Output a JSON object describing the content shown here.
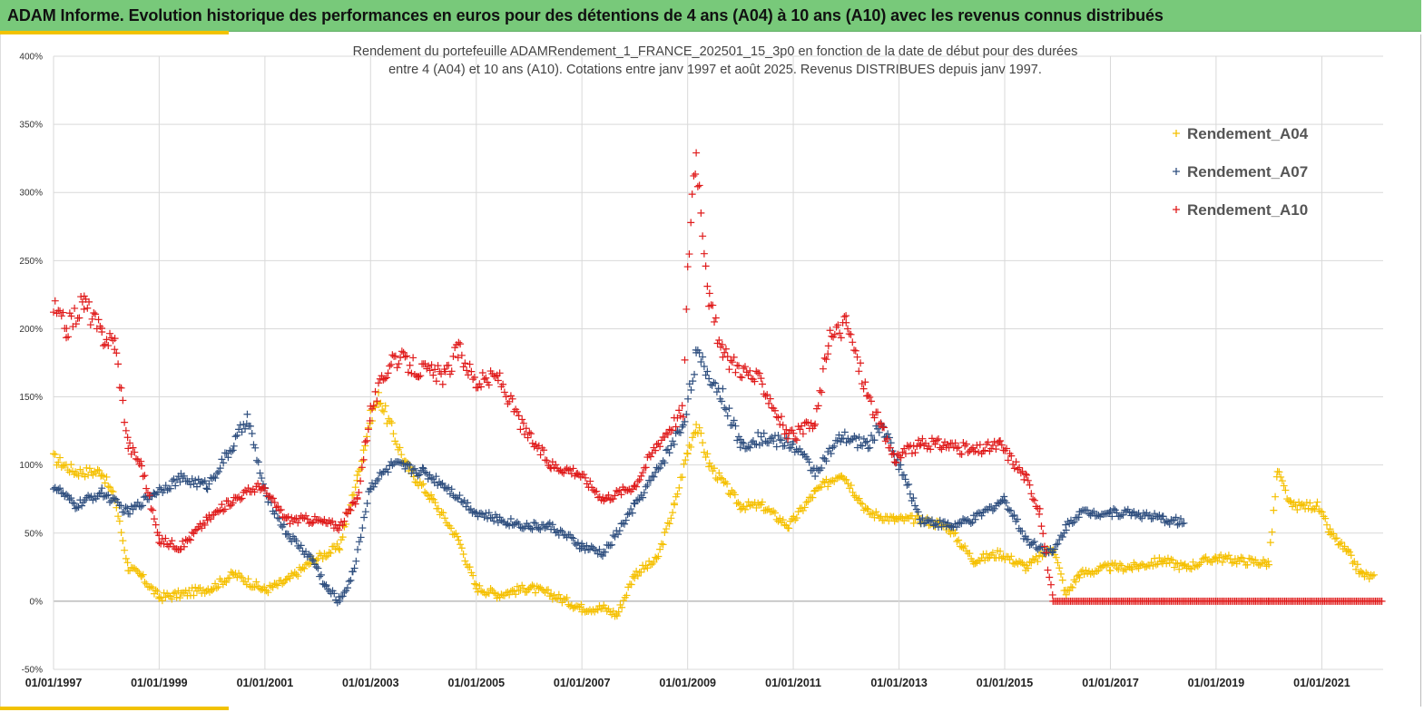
{
  "banner": {
    "title": "ADAM Informe. Evolution historique des performances en euros pour des détentions de 4 ans (A04) à 10 ans (A10) avec les revenus connus distribués"
  },
  "colors": {
    "banner": "#78c97a",
    "accent": "#f2c200",
    "A04": "#f5c000",
    "A07": "#2f4f7f",
    "A10": "#e01b1b"
  },
  "chart_data": {
    "type": "scatter",
    "title_lines": [
      "Rendement du portefeuille ADAMRendement_1_FRANCE_202501_15_3p0  en fonction de la date de début pour des durées",
      "entre 4 (A04) et 10 ans (A10). Cotations  entre janv 1997 et août 2025. Revenus DISTRIBUES depuis janv 1997."
    ],
    "xlabel": "",
    "ylabel": "",
    "ylim": [
      -50,
      400
    ],
    "xlim": [
      "1997-01-01",
      "2022-03-01"
    ],
    "y_ticks": [
      "-50%",
      "0%",
      "50%",
      "100%",
      "150%",
      "200%",
      "250%",
      "300%",
      "350%",
      "400%"
    ],
    "x_ticks": [
      "01/01/1997",
      "01/01/1999",
      "01/01/2001",
      "01/01/2003",
      "01/01/2005",
      "01/01/2007",
      "01/01/2009",
      "01/01/2011",
      "01/01/2013",
      "01/01/2015",
      "01/01/2017",
      "01/01/2019",
      "01/01/2021"
    ],
    "grid": true,
    "legend_position": "top-right",
    "marker": "+",
    "series": [
      {
        "name": "Rendement_A04",
        "color": "#f5c000",
        "points": [
          [
            "1997-01-01",
            105
          ],
          [
            "1997-06-01",
            95
          ],
          [
            "1997-12-01",
            95
          ],
          [
            "1998-03-01",
            75
          ],
          [
            "1998-06-01",
            25
          ],
          [
            "1998-09-01",
            18
          ],
          [
            "1999-01-01",
            3
          ],
          [
            "1999-06-01",
            5
          ],
          [
            "2000-01-01",
            10
          ],
          [
            "2000-06-01",
            20
          ],
          [
            "2001-01-01",
            8
          ],
          [
            "2001-06-01",
            15
          ],
          [
            "2001-12-01",
            30
          ],
          [
            "2002-06-01",
            40
          ],
          [
            "2002-10-01",
            90
          ],
          [
            "2003-01-01",
            135
          ],
          [
            "2003-03-01",
            150
          ],
          [
            "2003-09-01",
            100
          ],
          [
            "2004-03-01",
            75
          ],
          [
            "2004-09-01",
            45
          ],
          [
            "2005-01-01",
            10
          ],
          [
            "2005-06-01",
            5
          ],
          [
            "2006-01-01",
            10
          ],
          [
            "2006-06-01",
            5
          ],
          [
            "2007-01-01",
            -5
          ],
          [
            "2007-06-01",
            -5
          ],
          [
            "2007-09-01",
            -10
          ],
          [
            "2008-01-01",
            20
          ],
          [
            "2008-06-01",
            30
          ],
          [
            "2008-10-01",
            70
          ],
          [
            "2009-01-01",
            110
          ],
          [
            "2009-03-01",
            130
          ],
          [
            "2009-06-01",
            100
          ],
          [
            "2010-01-01",
            70
          ],
          [
            "2010-06-01",
            70
          ],
          [
            "2010-12-01",
            55
          ],
          [
            "2011-06-01",
            80
          ],
          [
            "2011-12-01",
            95
          ],
          [
            "2012-06-01",
            65
          ],
          [
            "2012-12-01",
            60
          ],
          [
            "2013-06-01",
            60
          ],
          [
            "2013-12-01",
            55
          ],
          [
            "2014-06-01",
            30
          ],
          [
            "2014-12-01",
            35
          ],
          [
            "2015-06-01",
            25
          ],
          [
            "2015-12-01",
            40
          ],
          [
            "2016-03-01",
            5
          ],
          [
            "2016-06-01",
            20
          ],
          [
            "2017-01-01",
            25
          ],
          [
            "2017-06-01",
            25
          ],
          [
            "2018-01-01",
            30
          ],
          [
            "2018-06-01",
            25
          ],
          [
            "2019-01-01",
            32
          ],
          [
            "2019-06-01",
            30
          ],
          [
            "2020-01-01",
            28
          ],
          [
            "2020-03-01",
            95
          ],
          [
            "2020-06-01",
            70
          ],
          [
            "2020-12-01",
            70
          ],
          [
            "2021-03-01",
            50
          ],
          [
            "2021-07-01",
            35
          ],
          [
            "2021-10-01",
            20
          ],
          [
            "2022-01-01",
            17
          ]
        ]
      },
      {
        "name": "Rendement_A07",
        "color": "#2f4f7f",
        "points": [
          [
            "1997-01-01",
            85
          ],
          [
            "1997-06-01",
            70
          ],
          [
            "1997-12-01",
            80
          ],
          [
            "1998-06-01",
            65
          ],
          [
            "1998-12-01",
            80
          ],
          [
            "1999-06-01",
            90
          ],
          [
            "1999-12-01",
            85
          ],
          [
            "2000-06-01",
            115
          ],
          [
            "2000-09-01",
            135
          ],
          [
            "2001-01-01",
            80
          ],
          [
            "2001-06-01",
            50
          ],
          [
            "2001-12-01",
            30
          ],
          [
            "2002-03-01",
            10
          ],
          [
            "2002-06-01",
            0
          ],
          [
            "2002-09-01",
            20
          ],
          [
            "2003-01-01",
            85
          ],
          [
            "2003-06-01",
            100
          ],
          [
            "2004-01-01",
            95
          ],
          [
            "2004-06-01",
            85
          ],
          [
            "2005-01-01",
            65
          ],
          [
            "2005-06-01",
            60
          ],
          [
            "2006-01-01",
            55
          ],
          [
            "2006-06-01",
            55
          ],
          [
            "2007-01-01",
            40
          ],
          [
            "2007-06-01",
            35
          ],
          [
            "2008-01-01",
            70
          ],
          [
            "2008-06-01",
            95
          ],
          [
            "2008-12-01",
            130
          ],
          [
            "2009-03-01",
            180
          ],
          [
            "2009-09-01",
            150
          ],
          [
            "2010-01-01",
            115
          ],
          [
            "2010-06-01",
            120
          ],
          [
            "2011-01-01",
            115
          ],
          [
            "2011-06-01",
            95
          ],
          [
            "2011-12-01",
            120
          ],
          [
            "2012-06-01",
            115
          ],
          [
            "2012-09-01",
            130
          ],
          [
            "2013-01-01",
            100
          ],
          [
            "2013-06-01",
            60
          ],
          [
            "2014-01-01",
            55
          ],
          [
            "2014-06-01",
            60
          ],
          [
            "2015-01-01",
            75
          ],
          [
            "2015-06-01",
            45
          ],
          [
            "2015-12-01",
            35
          ],
          [
            "2016-03-01",
            55
          ],
          [
            "2016-06-01",
            65
          ],
          [
            "2017-01-01",
            65
          ],
          [
            "2017-06-01",
            65
          ],
          [
            "2018-01-01",
            60
          ],
          [
            "2018-06-01",
            58
          ]
        ]
      },
      {
        "name": "Rendement_A10",
        "color": "#e01b1b",
        "points": [
          [
            "1997-01-01",
            215
          ],
          [
            "1997-04-01",
            200
          ],
          [
            "1997-08-01",
            220
          ],
          [
            "1997-12-01",
            195
          ],
          [
            "1998-03-01",
            190
          ],
          [
            "1998-06-01",
            115
          ],
          [
            "1998-09-01",
            100
          ],
          [
            "1999-01-01",
            45
          ],
          [
            "1999-06-01",
            40
          ],
          [
            "1999-12-01",
            60
          ],
          [
            "2000-06-01",
            75
          ],
          [
            "2000-12-01",
            85
          ],
          [
            "2001-06-01",
            60
          ],
          [
            "2001-12-01",
            60
          ],
          [
            "2002-06-01",
            55
          ],
          [
            "2002-10-01",
            75
          ],
          [
            "2003-01-01",
            140
          ],
          [
            "2003-06-01",
            180
          ],
          [
            "2003-12-01",
            170
          ],
          [
            "2004-06-01",
            165
          ],
          [
            "2004-09-01",
            185
          ],
          [
            "2005-01-01",
            160
          ],
          [
            "2005-06-01",
            165
          ],
          [
            "2005-12-01",
            125
          ],
          [
            "2006-06-01",
            100
          ],
          [
            "2006-12-01",
            95
          ],
          [
            "2007-06-01",
            75
          ],
          [
            "2008-01-01",
            85
          ],
          [
            "2008-06-01",
            115
          ],
          [
            "2008-12-01",
            140
          ],
          [
            "2009-01-01",
            240
          ],
          [
            "2009-02-01",
            300
          ],
          [
            "2009-03-01",
            330
          ],
          [
            "2009-06-01",
            220
          ],
          [
            "2009-09-01",
            180
          ],
          [
            "2010-06-01",
            160
          ],
          [
            "2010-12-01",
            120
          ],
          [
            "2011-06-01",
            130
          ],
          [
            "2011-09-01",
            190
          ],
          [
            "2012-01-01",
            205
          ],
          [
            "2012-06-01",
            150
          ],
          [
            "2012-12-01",
            105
          ],
          [
            "2013-06-01",
            115
          ],
          [
            "2013-12-01",
            115
          ],
          [
            "2014-06-01",
            110
          ],
          [
            "2014-12-01",
            115
          ],
          [
            "2015-06-01",
            90
          ],
          [
            "2015-09-01",
            65
          ],
          [
            "2015-12-01",
            0
          ],
          [
            "2018-01-01",
            0
          ],
          [
            "2020-01-01",
            0
          ],
          [
            "2022-03-01",
            0
          ]
        ]
      }
    ]
  }
}
